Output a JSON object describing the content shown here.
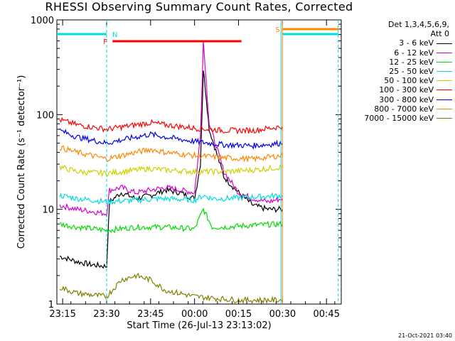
{
  "title": "RHESSI Observing Summary Count Rates, Corrected",
  "legend_header": [
    "Det 1,3,4,5,6,9,",
    "Att 0"
  ],
  "footer_timestamp": "21-Oct-2021 03:40",
  "chart_data": {
    "type": "line",
    "title": "RHESSI Observing Summary Count Rates, Corrected",
    "xlabel": "Start Time (26-Jul-13 23:13:02)",
    "ylabel": "Corrected Count Rate (s⁻¹ detector⁻¹)",
    "y_scale": "log",
    "ylim": [
      1,
      1000
    ],
    "xlim_minutes_after_23_13_02": [
      0,
      97
    ],
    "x_ticks": [
      "23:15",
      "23:30",
      "23:45",
      "00:00",
      "00:15",
      "00:30",
      "00:45"
    ],
    "y_ticks": [
      "1",
      "10",
      "100",
      "1000"
    ],
    "legend_placement": "right",
    "series": [
      {
        "name": "3 - 6 keV",
        "color": "#000000",
        "x": [
          "23:14",
          "23:20",
          "23:25",
          "23:30",
          "23:31",
          "23:35",
          "23:40",
          "23:45",
          "23:50",
          "23:55",
          "00:00",
          "00:02",
          "00:03",
          "00:04",
          "00:05",
          "00:08",
          "00:10",
          "00:15",
          "00:20",
          "00:25",
          "00:30"
        ],
        "y": [
          3.2,
          2.8,
          2.6,
          2.5,
          12,
          15,
          13,
          14,
          16,
          15,
          13,
          30,
          300,
          150,
          70,
          35,
          22,
          15,
          11,
          10,
          10
        ]
      },
      {
        "name": "6 - 12 keV",
        "color": "#d400d4",
        "x": [
          "23:14",
          "23:20",
          "23:25",
          "23:30",
          "23:31",
          "23:35",
          "23:40",
          "23:45",
          "23:50",
          "23:55",
          "00:00",
          "00:02",
          "00:03",
          "00:04",
          "00:05",
          "00:08",
          "00:10",
          "00:15",
          "00:20",
          "00:25",
          "00:30"
        ],
        "y": [
          11,
          10,
          9.5,
          9,
          16,
          17,
          15,
          16,
          17,
          16,
          15,
          60,
          600,
          220,
          80,
          40,
          25,
          15,
          13,
          12,
          13
        ]
      },
      {
        "name": "12 - 25 keV",
        "color": "#00dd00",
        "x": [
          "23:14",
          "23:20",
          "23:30",
          "23:40",
          "23:50",
          "00:00",
          "00:03",
          "00:06",
          "00:10",
          "00:20",
          "00:30"
        ],
        "y": [
          7,
          6.5,
          6,
          6.5,
          6.5,
          6.2,
          10,
          6.5,
          6.5,
          6.8,
          7
        ]
      },
      {
        "name": "25 - 50 keV",
        "color": "#00dddd",
        "x": [
          "23:14",
          "23:20",
          "23:30",
          "23:40",
          "23:50",
          "00:00",
          "00:03",
          "00:06",
          "00:10",
          "00:20",
          "00:30"
        ],
        "y": [
          14,
          13,
          12,
          12.5,
          13,
          12.5,
          14,
          13,
          13,
          13.5,
          14
        ]
      },
      {
        "name": "50 - 100 keV",
        "color": "#d0d000",
        "x": [
          "23:14",
          "23:20",
          "23:30",
          "23:40",
          "23:45",
          "23:50",
          "00:00",
          "00:10",
          "00:20",
          "00:30"
        ],
        "y": [
          28,
          25,
          24,
          26,
          27,
          26,
          25,
          25,
          26,
          28
        ]
      },
      {
        "name": "100 - 300 keV",
        "color": "#ff0000",
        "x": [
          "23:14",
          "23:20",
          "23:30",
          "23:40",
          "23:45",
          "23:50",
          "00:00",
          "00:10",
          "00:20",
          "00:30"
        ],
        "y": [
          88,
          78,
          70,
          78,
          82,
          78,
          72,
          68,
          68,
          75
        ]
      },
      {
        "name": "300 - 800 keV",
        "color": "#0000ee",
        "x": [
          "23:14",
          "23:20",
          "23:30",
          "23:40",
          "23:45",
          "23:50",
          "00:00",
          "00:10",
          "00:20",
          "00:30"
        ],
        "y": [
          68,
          58,
          50,
          58,
          62,
          58,
          52,
          48,
          47,
          50
        ]
      },
      {
        "name": "800 - 7000 keV",
        "color": "#ff8800",
        "x": [
          "23:14",
          "23:20",
          "23:30",
          "23:40",
          "23:45",
          "23:50",
          "00:00",
          "00:10",
          "00:20",
          "00:30"
        ],
        "y": [
          45,
          40,
          34,
          40,
          43,
          40,
          37,
          35,
          34,
          37
        ]
      },
      {
        "name": "7000 - 15000 keV",
        "color": "#808000",
        "x": [
          "23:14",
          "23:20",
          "23:30",
          "23:35",
          "23:40",
          "23:45",
          "23:50",
          "00:00",
          "00:15",
          "00:30"
        ],
        "y": [
          1.5,
          1.3,
          1.2,
          1.8,
          2.0,
          1.8,
          1.4,
          1.2,
          1.1,
          1.1
        ]
      }
    ],
    "annotations": [
      {
        "text": "N",
        "color": "#00dddd"
      },
      {
        "text": "F",
        "color": "#ff0000"
      },
      {
        "text": "S",
        "color": "#ff8800"
      }
    ]
  }
}
